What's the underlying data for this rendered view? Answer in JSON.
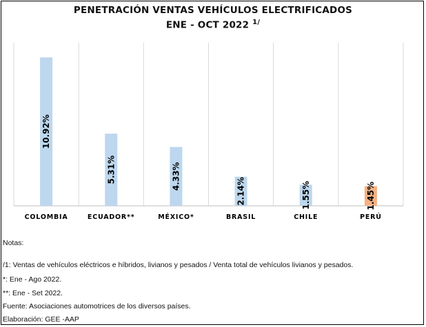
{
  "chart_data": {
    "type": "bar",
    "title": "PENETRACIÓN VENTAS VEHÍCULOS ELECTRIFICADOS",
    "subtitle": "ENE - OCT 2022",
    "subtitle_note": "1/",
    "categories": [
      "COLOMBIA",
      "ECUADOR**",
      "MÉXICO*",
      "BRASIL",
      "CHILE",
      "PERÚ"
    ],
    "values": [
      10.92,
      5.31,
      4.33,
      2.14,
      1.55,
      1.45
    ],
    "value_labels": [
      "10.92%",
      "5.31%",
      "4.33%",
      "2.14%",
      "1.55%",
      "1.45%"
    ],
    "colors": [
      "#bdd7ee",
      "#bdd7ee",
      "#bdd7ee",
      "#bdd7ee",
      "#bdd7ee",
      "#f4b183"
    ],
    "ylim": [
      0,
      12
    ],
    "grid": "vertical separators",
    "legend": "none"
  },
  "notes": {
    "heading": "Notas:",
    "n1": "/1: Ventas de vehículos eléctricos e híbridos, livianos y pesados / Venta total de vehículos livianos y pesados.",
    "n2": "*: Ene - Ago 2022.",
    "n3": "**: Ene - Set 2022.",
    "source": "Fuente: Asociaciones automotrices de los diversos países.",
    "author": "Elaboración: GEE -AAP"
  }
}
